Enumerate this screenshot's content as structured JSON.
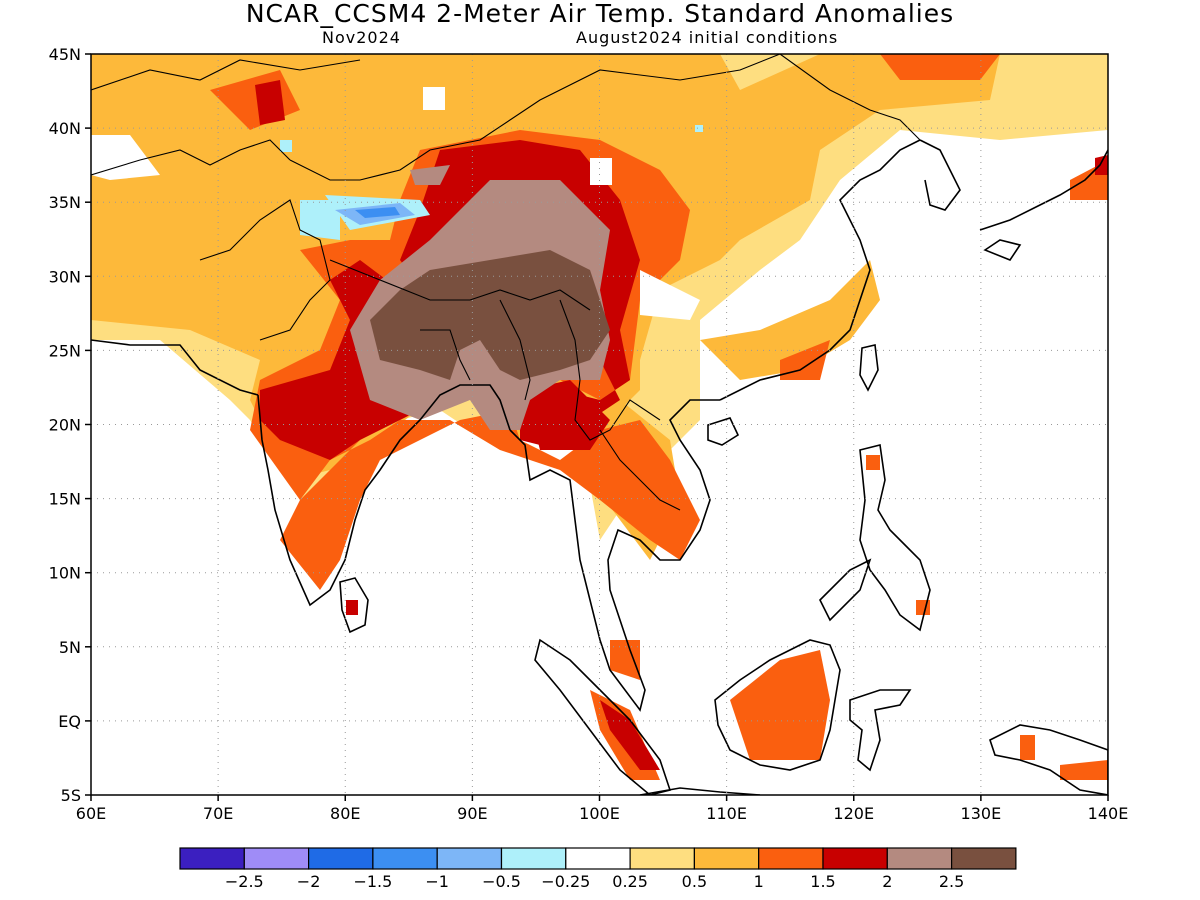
{
  "title": "NCAR_CCSM4 2-Meter Air Temp. Standard Anomalies",
  "subtitle_left": "Nov2024",
  "subtitle_right": "August2024 initial conditions",
  "map": {
    "lon_range": [
      60,
      140
    ],
    "lat_range": [
      -5,
      45
    ],
    "lon_ticks": [
      {
        "value": 60,
        "label": "60E"
      },
      {
        "value": 70,
        "label": "70E"
      },
      {
        "value": 80,
        "label": "80E"
      },
      {
        "value": 90,
        "label": "90E"
      },
      {
        "value": 100,
        "label": "100E"
      },
      {
        "value": 110,
        "label": "110E"
      },
      {
        "value": 120,
        "label": "120E"
      },
      {
        "value": 130,
        "label": "130E"
      },
      {
        "value": 140,
        "label": "140E"
      }
    ],
    "lat_ticks": [
      {
        "value": 45,
        "label": "45N"
      },
      {
        "value": 40,
        "label": "40N"
      },
      {
        "value": 35,
        "label": "35N"
      },
      {
        "value": 30,
        "label": "30N"
      },
      {
        "value": 25,
        "label": "25N"
      },
      {
        "value": 20,
        "label": "20N"
      },
      {
        "value": 15,
        "label": "15N"
      },
      {
        "value": 10,
        "label": "10N"
      },
      {
        "value": 5,
        "label": "5N"
      },
      {
        "value": 0,
        "label": "EQ"
      },
      {
        "value": -5,
        "label": "5S"
      }
    ],
    "grid": "dotted"
  },
  "colorbar": {
    "colors": [
      "#3b1fc0",
      "#9f8cf7",
      "#1f6be6",
      "#3c8ff2",
      "#7db6f7",
      "#aef0fa",
      "#ffffff",
      "#fede80",
      "#fdb93a",
      "#fa5f0f",
      "#c80000",
      "#b48a80",
      "#79503f"
    ],
    "labels": [
      "-2.5",
      "-2",
      "-1.5",
      "-1",
      "-0.5",
      "-0.25",
      "0.25",
      "0.5",
      "1",
      "1.5",
      "2",
      "2.5"
    ]
  }
}
